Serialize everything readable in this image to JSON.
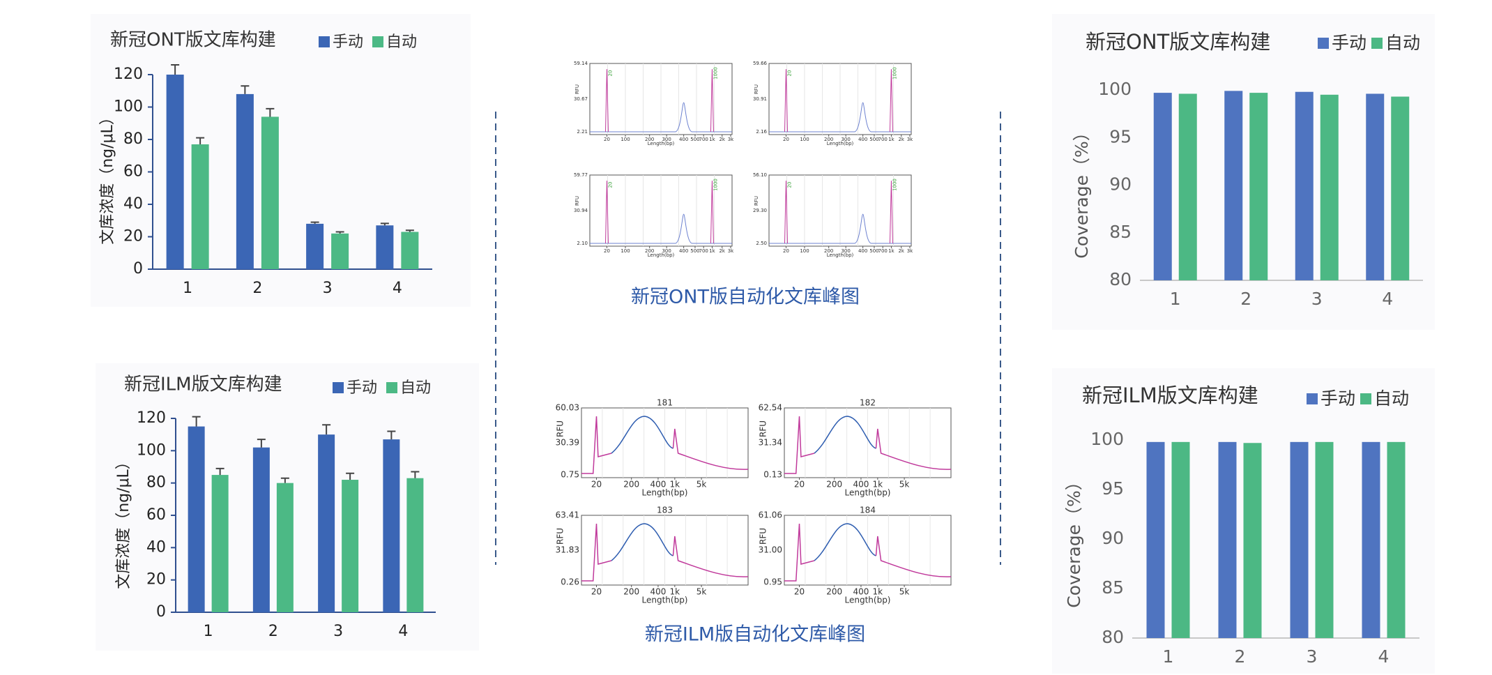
{
  "chart_data": [
    {
      "type": "bar",
      "title": "新冠ONT版文库构建",
      "ylabel": "文库浓度（ng/μL）",
      "categories": [
        "1",
        "2",
        "3",
        "4"
      ],
      "series": [
        {
          "name": "手动",
          "color": "#3b66b5",
          "values": [
            120,
            108,
            28,
            27
          ],
          "error": [
            6,
            5,
            1,
            1.2
          ]
        },
        {
          "name": "自动",
          "color": "#4cb985",
          "values": [
            77,
            94,
            22,
            23
          ],
          "error": [
            4,
            5,
            1,
            1
          ]
        }
      ],
      "ylim": [
        0,
        120
      ],
      "yticks": [
        0,
        20,
        40,
        60,
        80,
        100,
        120
      ]
    },
    {
      "type": "bar",
      "title": "新冠ILM版文库构建",
      "ylabel": "文库浓度（ng/μL）",
      "categories": [
        "1",
        "2",
        "3",
        "4"
      ],
      "series": [
        {
          "name": "手动",
          "color": "#3b66b5",
          "values": [
            115,
            102,
            110,
            107
          ],
          "error": [
            6,
            5,
            6,
            5
          ]
        },
        {
          "name": "自动",
          "color": "#4cb985",
          "values": [
            85,
            80,
            82,
            83
          ],
          "error": [
            4,
            3,
            4,
            4
          ]
        }
      ],
      "ylim": [
        0,
        120
      ],
      "yticks": [
        0,
        20,
        40,
        60,
        80,
        100,
        120
      ]
    },
    {
      "type": "electropherogram",
      "caption": "新冠ONT版自动化文库峰图",
      "ylabel": "RFU",
      "xlabel": "Length(bp)",
      "xticks": [
        20,
        100,
        200,
        300,
        400,
        500,
        700,
        {
          "value": 1000,
          "label": "1k"
        },
        {
          "value": 2000,
          "label": "2k"
        },
        {
          "value": 3000,
          "label": "3k"
        }
      ],
      "peak_labels": [
        20,
        1000
      ],
      "panels": [
        {
          "yticks": [
            2.21,
            30.67,
            59.14
          ]
        },
        {
          "yticks": [
            2.16,
            30.91,
            59.66
          ]
        },
        {
          "yticks": [
            {
              "value": 2.1,
              "label": "2.10"
            },
            30.94,
            59.77
          ]
        },
        {
          "yticks": [
            {
              "value": 2.5,
              "label": "2.50"
            },
            {
              "value": 29.3,
              "label": "29.30"
            },
            {
              "value": 56.1,
              "label": "56.10"
            }
          ]
        }
      ]
    },
    {
      "type": "electropherogram",
      "caption": "新冠ILM版自动化文库峰图",
      "ylabel": "RFU",
      "xlabel": "Length(bp)",
      "xticks": [
        20,
        200,
        400,
        {
          "value": 1000,
          "label": "1k"
        },
        {
          "value": 5000,
          "label": "5k"
        }
      ],
      "panels": [
        {
          "title": "181",
          "yticks": [
            0.75,
            30.39,
            60.03
          ]
        },
        {
          "title": "182",
          "yticks": [
            0.13,
            31.34,
            62.54
          ]
        },
        {
          "title": "183",
          "yticks": [
            0.26,
            31.83,
            63.41
          ]
        },
        {
          "title": "184",
          "yticks": [
            0.95,
            {
              "value": 31,
              "label": "31.00"
            },
            61.06
          ]
        }
      ]
    },
    {
      "type": "bar",
      "title": "新冠ONT版文库构建",
      "ylabel": "Coverage（%）",
      "categories": [
        "1",
        "2",
        "3",
        "4"
      ],
      "series": [
        {
          "name": "手动",
          "color": "#4f74c0",
          "values": [
            99.7,
            99.9,
            99.8,
            99.6
          ]
        },
        {
          "name": "自动",
          "color": "#4cb884",
          "values": [
            99.6,
            99.7,
            99.5,
            99.3
          ]
        }
      ],
      "ylim": [
        80,
        100
      ],
      "yticks": [
        80,
        85,
        90,
        95,
        100
      ]
    },
    {
      "type": "bar",
      "title": "新冠ILM版文库构建",
      "ylabel": "Coverage（%）",
      "categories": [
        "1",
        "2",
        "3",
        "4"
      ],
      "series": [
        {
          "name": "手动",
          "color": "#4f74c0",
          "values": [
            99.8,
            99.8,
            99.8,
            99.8
          ]
        },
        {
          "name": "自动",
          "color": "#4cb884",
          "values": [
            99.8,
            99.7,
            99.8,
            99.8
          ]
        }
      ],
      "ylim": [
        80,
        100
      ],
      "yticks": [
        80,
        85,
        90,
        95,
        100
      ]
    }
  ]
}
